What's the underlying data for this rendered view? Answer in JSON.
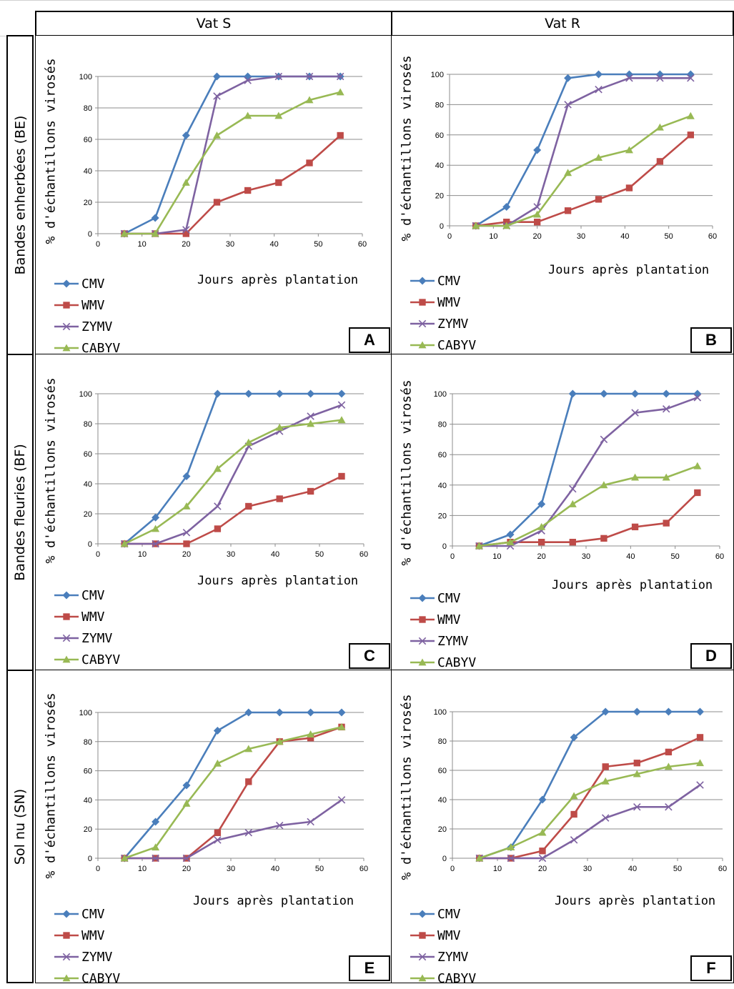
{
  "columns": [
    "Vat S",
    "Vat R"
  ],
  "rows": [
    "Bandes enherbées (BE)",
    "Bandes fleuries (BF)",
    "Sol nu (SN)"
  ],
  "ylabel": "% d'échantillons virosés",
  "xlabel": "Jours après plantation",
  "colors": {
    "CMV": "#4a7ebb",
    "WMV": "#be4b48",
    "ZYMV": "#7e62a1",
    "CABYV": "#98b954"
  },
  "chart_data": [
    {
      "type": "line",
      "panel": "A",
      "x": [
        6,
        13,
        20,
        27,
        34,
        41,
        48,
        55
      ],
      "xlim": [
        0,
        60
      ],
      "ylim": [
        0,
        100
      ],
      "xticks": [
        0,
        10,
        20,
        30,
        40,
        50,
        60
      ],
      "yticks": [
        0,
        20,
        40,
        60,
        80,
        100
      ],
      "xlabel": "Jours après plantation",
      "ylabel": "% d'échantillons virosés",
      "grid": true,
      "legend": "bottom-left",
      "series": [
        {
          "name": "CMV",
          "values": [
            0,
            10,
            62.5,
            100,
            100,
            100,
            100,
            100
          ]
        },
        {
          "name": "WMV",
          "values": [
            0,
            0,
            0,
            20,
            27.5,
            32.5,
            45,
            62.5
          ]
        },
        {
          "name": "ZYMV",
          "values": [
            0,
            0,
            2.5,
            87.5,
            97.5,
            100,
            100,
            100
          ]
        },
        {
          "name": "CABYV",
          "values": [
            0,
            0,
            32.5,
            62.5,
            75,
            75,
            85,
            90
          ]
        }
      ]
    },
    {
      "type": "line",
      "panel": "B",
      "x": [
        6,
        13,
        20,
        27,
        34,
        41,
        48,
        55
      ],
      "xlim": [
        0,
        60
      ],
      "ylim": [
        0,
        100
      ],
      "xticks": [
        0,
        10,
        20,
        30,
        40,
        50,
        60
      ],
      "yticks": [
        0,
        20,
        40,
        60,
        80,
        100
      ],
      "xlabel": "Jours après plantation",
      "ylabel": "% d'échantillons virosés",
      "grid": true,
      "legend": "bottom-left",
      "series": [
        {
          "name": "CMV",
          "values": [
            0,
            12.5,
            50,
            97.5,
            100,
            100,
            100,
            100
          ]
        },
        {
          "name": "WMV",
          "values": [
            0,
            2.5,
            2.5,
            10,
            17.5,
            25,
            42.5,
            60
          ]
        },
        {
          "name": "ZYMV",
          "values": [
            0,
            0,
            12.5,
            80,
            90,
            97.5,
            97.5,
            97.5
          ]
        },
        {
          "name": "CABYV",
          "values": [
            0,
            0,
            7.5,
            35,
            45,
            50,
            65,
            72.5
          ]
        }
      ]
    },
    {
      "type": "line",
      "panel": "C",
      "x": [
        6,
        13,
        20,
        27,
        34,
        41,
        48,
        55
      ],
      "xlim": [
        0,
        60
      ],
      "ylim": [
        0,
        100
      ],
      "xticks": [
        0,
        10,
        20,
        30,
        40,
        50,
        60
      ],
      "yticks": [
        0,
        20,
        40,
        60,
        80,
        100
      ],
      "xlabel": "Jours après plantation",
      "ylabel": "% d'échantillons virosés",
      "grid": true,
      "legend": "bottom-left",
      "series": [
        {
          "name": "CMV",
          "values": [
            0,
            17.5,
            45,
            100,
            100,
            100,
            100,
            100
          ]
        },
        {
          "name": "WMV",
          "values": [
            0,
            0,
            0,
            10,
            25,
            30,
            35,
            45
          ]
        },
        {
          "name": "ZYMV",
          "values": [
            0,
            0,
            7.5,
            25,
            65,
            75,
            85,
            92.5
          ]
        },
        {
          "name": "CABYV",
          "values": [
            0,
            10,
            25,
            50,
            67.5,
            77.5,
            80,
            82.5
          ]
        }
      ]
    },
    {
      "type": "line",
      "panel": "D",
      "x": [
        6,
        13,
        20,
        27,
        34,
        41,
        48,
        55
      ],
      "xlim": [
        0,
        60
      ],
      "ylim": [
        0,
        100
      ],
      "xticks": [
        0,
        10,
        20,
        30,
        40,
        50,
        60
      ],
      "yticks": [
        0,
        20,
        40,
        60,
        80,
        100
      ],
      "xlabel": "Jours après plantation",
      "ylabel": "% d'échantillons virosés",
      "grid": true,
      "legend": "bottom-left",
      "series": [
        {
          "name": "CMV",
          "values": [
            0,
            7.5,
            27.5,
            100,
            100,
            100,
            100,
            100
          ]
        },
        {
          "name": "WMV",
          "values": [
            0,
            2.5,
            2.5,
            2.5,
            5,
            12.5,
            15,
            35
          ]
        },
        {
          "name": "ZYMV",
          "values": [
            0,
            0,
            10,
            37.5,
            70,
            87.5,
            90,
            97.5
          ]
        },
        {
          "name": "CABYV",
          "values": [
            0,
            2.5,
            12.5,
            27.5,
            40,
            45,
            45,
            52.5
          ]
        }
      ]
    },
    {
      "type": "line",
      "panel": "E",
      "x": [
        6,
        13,
        20,
        27,
        34,
        41,
        48,
        55
      ],
      "xlim": [
        0,
        60
      ],
      "ylim": [
        0,
        100
      ],
      "xticks": [
        0,
        10,
        20,
        30,
        40,
        50,
        60
      ],
      "yticks": [
        0,
        20,
        40,
        60,
        80,
        100
      ],
      "xlabel": "Jours après plantation",
      "ylabel": "% d'échantillons virosés",
      "grid": true,
      "legend": "bottom-left",
      "series": [
        {
          "name": "CMV",
          "values": [
            0,
            25,
            50,
            87.5,
            100,
            100,
            100,
            100
          ]
        },
        {
          "name": "WMV",
          "values": [
            0,
            0,
            0,
            17.5,
            52.5,
            80,
            82.5,
            90
          ]
        },
        {
          "name": "ZYMV",
          "values": [
            0,
            0,
            0,
            12.5,
            17.5,
            22.5,
            25,
            40
          ]
        },
        {
          "name": "CABYV",
          "values": [
            0,
            7.5,
            37.5,
            65,
            75,
            80,
            85,
            90
          ]
        }
      ]
    },
    {
      "type": "line",
      "panel": "F",
      "x": [
        6,
        13,
        20,
        27,
        34,
        41,
        48,
        55
      ],
      "xlim": [
        0,
        60
      ],
      "ylim": [
        0,
        100
      ],
      "xticks": [
        0,
        10,
        20,
        30,
        40,
        50,
        60
      ],
      "yticks": [
        0,
        20,
        40,
        60,
        80,
        100
      ],
      "xlabel": "Jours après plantation",
      "ylabel": "% d'échantillons virosés",
      "grid": true,
      "legend": "bottom-left",
      "series": [
        {
          "name": "CMV",
          "values": [
            0,
            7.5,
            40,
            82.5,
            100,
            100,
            100,
            100
          ]
        },
        {
          "name": "WMV",
          "values": [
            0,
            0,
            5,
            30,
            62.5,
            65,
            72.5,
            82.5
          ]
        },
        {
          "name": "ZYMV",
          "values": [
            0,
            0,
            0,
            12.5,
            27.5,
            35,
            35,
            50
          ]
        },
        {
          "name": "CABYV",
          "values": [
            0,
            7.5,
            17.5,
            42.5,
            52.5,
            57.5,
            62.5,
            65
          ]
        }
      ]
    }
  ]
}
